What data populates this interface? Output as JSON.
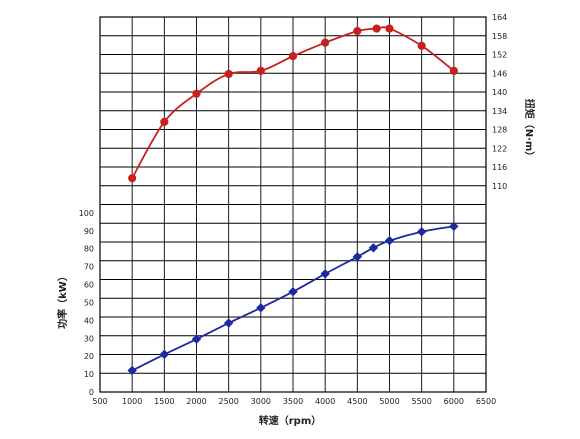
{
  "chart_data": {
    "type": "line",
    "xlabel": "转速（rpm）",
    "x_ticks": [
      500,
      1000,
      1500,
      2000,
      2500,
      3000,
      3500,
      4000,
      4500,
      5000,
      5500,
      6000,
      6500
    ],
    "xlim": [
      500,
      6500
    ],
    "grid": true,
    "axes": {
      "power": {
        "label": "功率（kW）",
        "side": "left",
        "ylim": [
          0,
          110
        ],
        "ticks": [
          0,
          10,
          20,
          30,
          40,
          50,
          60,
          70,
          80,
          90,
          100
        ]
      },
      "torque": {
        "label": "扭矩（N·m）",
        "side": "right",
        "ylim": [
          110,
          164
        ],
        "ticks": [
          110,
          116,
          122,
          128,
          134,
          140,
          146,
          152,
          158,
          164
        ]
      }
    },
    "series": [
      {
        "axis": "torque",
        "color": "#c8201e",
        "points": [
          [
            1000,
            112.5
          ],
          [
            1500,
            130.5
          ],
          [
            2000,
            139.5
          ],
          [
            2500,
            145.8
          ],
          [
            3000,
            146.8
          ],
          [
            3500,
            151.5
          ],
          [
            4000,
            155.8
          ],
          [
            4500,
            159.5
          ],
          [
            4800,
            160.3
          ],
          [
            5000,
            160.3
          ],
          [
            5500,
            154.8
          ],
          [
            6000,
            146.8
          ]
        ]
      },
      {
        "axis": "power",
        "color": "#1c2aa0",
        "points": [
          [
            1000,
            12
          ],
          [
            1500,
            21
          ],
          [
            2000,
            29.5
          ],
          [
            2500,
            38.5
          ],
          [
            3000,
            47
          ],
          [
            3500,
            56
          ],
          [
            4000,
            66
          ],
          [
            4500,
            75.5
          ],
          [
            4750,
            80.5
          ],
          [
            5000,
            84.5
          ],
          [
            5500,
            89.5
          ],
          [
            6000,
            92.5
          ]
        ]
      }
    ]
  }
}
